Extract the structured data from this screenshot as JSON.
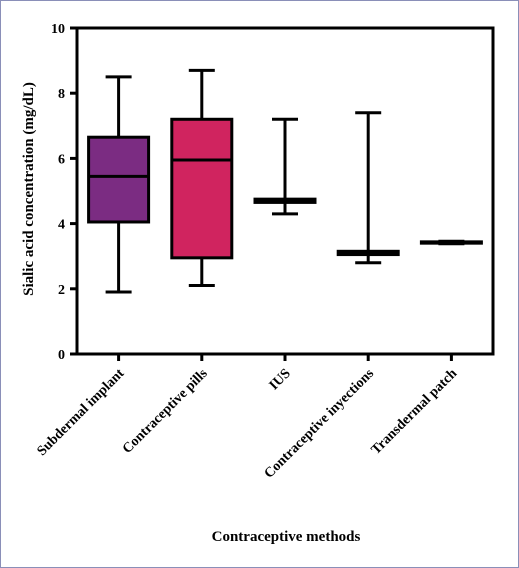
{
  "chart_data": {
    "type": "box",
    "xlabel": "Contraceptive methods",
    "ylabel": "Sialic acid concentration (mg/dL)",
    "ylim": [
      0,
      10
    ],
    "yticks": [
      "0",
      "2",
      "4",
      "6",
      "8",
      "10"
    ],
    "grid": false,
    "categories": [
      "Subdermal implant",
      "Contraceptive pills",
      "IUS",
      "Contraceptive inyections",
      "Transdermal patch"
    ],
    "boxes": [
      {
        "min": 1.9,
        "q1": 4.05,
        "median": 5.45,
        "q3": 6.65,
        "max": 8.5,
        "color": "#7b2c82"
      },
      {
        "min": 2.1,
        "q1": 2.95,
        "median": 5.95,
        "q3": 7.2,
        "max": 8.7,
        "color": "#d0245f"
      },
      {
        "min": 4.3,
        "q1": 4.65,
        "median": 4.7,
        "q3": 4.75,
        "max": 7.2,
        "color": "#ffffff"
      },
      {
        "min": 2.8,
        "q1": 3.05,
        "median": 3.1,
        "q3": 3.15,
        "max": 7.4,
        "color": "#ffffff"
      },
      {
        "min": 3.38,
        "q1": 3.4,
        "median": 3.42,
        "q3": 3.44,
        "max": 3.46,
        "color": "#ffffff"
      }
    ]
  }
}
